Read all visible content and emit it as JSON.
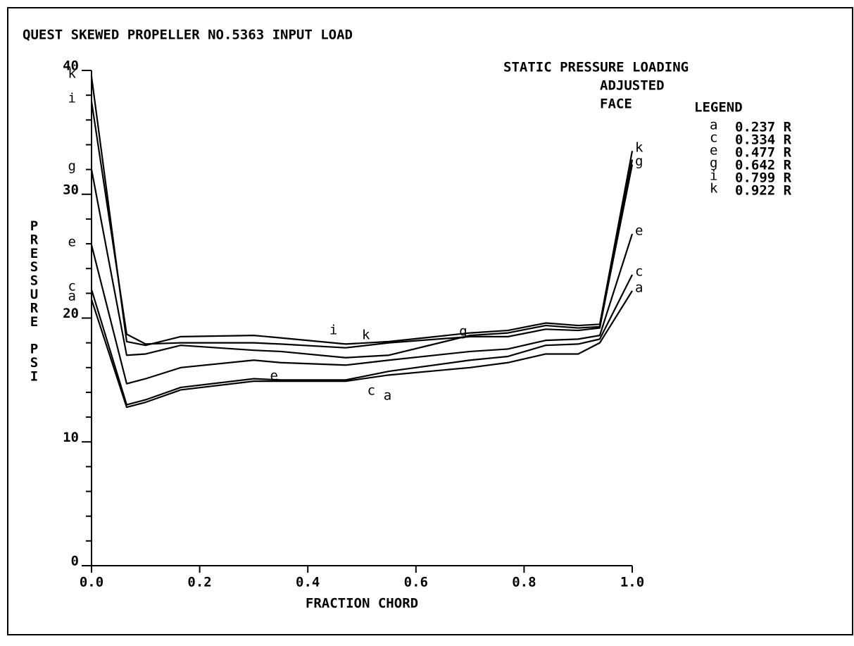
{
  "chart_data": {
    "type": "line",
    "title": "QUEST SKEWED PROPELLER NO.5363 INPUT LOAD",
    "subtitle": [
      "STATIC PRESSURE LOADING",
      "ADJUSTED",
      "FACE"
    ],
    "legend_title": "LEGEND",
    "x_label": "FRACTION CHORD",
    "y_label": "PRESSURE PSI",
    "x": [
      0,
      0.065,
      0.1,
      0.165,
      0.3,
      0.35,
      0.47,
      0.55,
      0.7,
      0.77,
      0.84,
      0.9,
      0.94,
      1.0
    ],
    "series": [
      {
        "key": "a",
        "name": "0.237 R",
        "color": "#000000",
        "values": [
          21.5,
          12.8,
          13.2,
          14.2,
          14.9,
          14.9,
          14.9,
          15.4,
          16.0,
          16.4,
          17.1,
          17.1,
          18.0,
          22.2
        ]
      },
      {
        "key": "c",
        "name": "0.334 R",
        "color": "#000000",
        "values": [
          22.3,
          13.0,
          13.4,
          14.4,
          15.1,
          15.0,
          15.0,
          15.7,
          16.6,
          16.9,
          17.8,
          17.9,
          18.3,
          23.5
        ]
      },
      {
        "key": "e",
        "name": "0.477 R",
        "color": "#000000",
        "values": [
          25.9,
          14.7,
          15.1,
          16.0,
          16.6,
          16.4,
          16.2,
          16.6,
          17.3,
          17.5,
          18.2,
          18.3,
          18.6,
          26.8
        ]
      },
      {
        "key": "g",
        "name": "0.642 R",
        "color": "#000000",
        "values": [
          32.0,
          17.0,
          17.1,
          17.8,
          17.4,
          17.3,
          16.8,
          17.0,
          18.6,
          18.8,
          19.4,
          19.2,
          19.3,
          32.4
        ]
      },
      {
        "key": "i",
        "name": "0.799 R",
        "color": "#000000",
        "values": [
          37.5,
          18.7,
          17.9,
          18.0,
          18.0,
          17.9,
          17.6,
          18.0,
          18.5,
          18.5,
          19.1,
          19.0,
          19.2,
          32.8
        ]
      },
      {
        "key": "k",
        "name": "0.922 R",
        "color": "#000000",
        "values": [
          39.5,
          18.1,
          17.8,
          18.5,
          18.6,
          18.4,
          17.9,
          18.1,
          18.8,
          19.0,
          19.6,
          19.4,
          19.5,
          33.5
        ]
      }
    ],
    "xlim": [
      0,
      1.0
    ],
    "ylim": [
      0,
      40
    ],
    "xticks": [
      {
        "value": 0,
        "label": "0.0"
      },
      0.2,
      0.4,
      0.6,
      0.8,
      {
        "value": 1.0,
        "label": "1.0"
      }
    ],
    "yticks": [
      0,
      10,
      20,
      30,
      40
    ],
    "yticks_minor": [
      2,
      4,
      6,
      8,
      12,
      14,
      16,
      18,
      22,
      24,
      26,
      28,
      32,
      34,
      36,
      38
    ],
    "grid": false
  }
}
